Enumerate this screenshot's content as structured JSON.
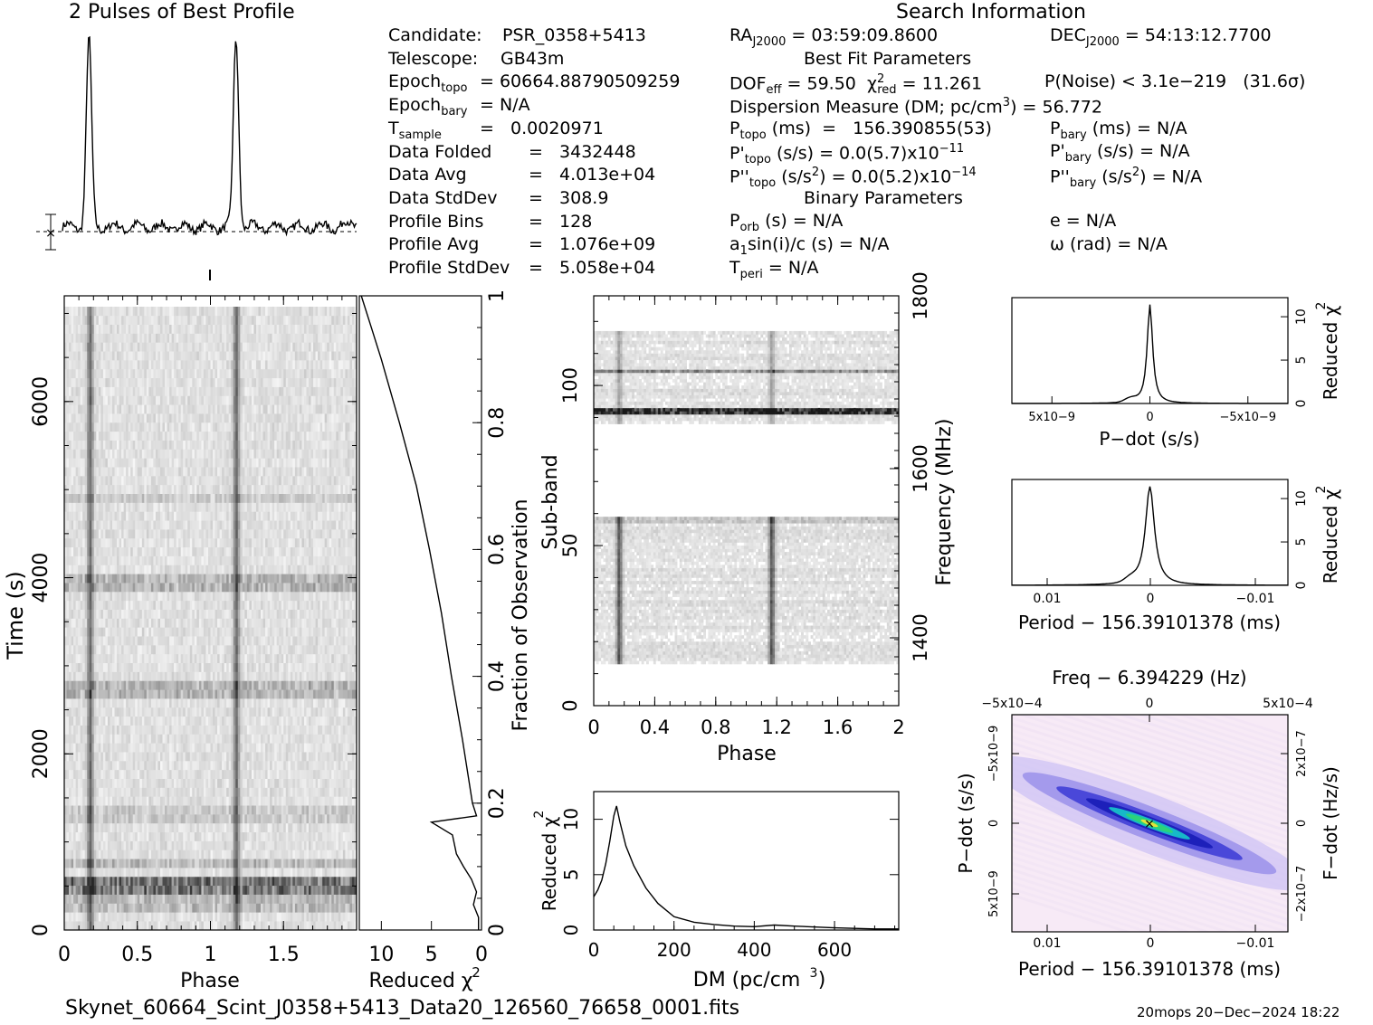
{
  "header": {
    "profile_title": "2 Pulses of Best Profile",
    "search_title": "Search Information",
    "best_fit_title": "Best Fit Parameters",
    "binary_title": "Binary Parameters"
  },
  "info_left": [
    {
      "label": "Candidate:",
      "value": "PSR_0358+5413"
    },
    {
      "label": "Telescope:",
      "value": "GB43m"
    },
    {
      "label": "Epoch",
      "sub": "topo",
      "value": "= 60664.88790509259"
    },
    {
      "label": "Epoch",
      "sub": "bary",
      "value": "= N/A"
    },
    {
      "label": "T",
      "sub": "sample",
      "value": "=   0.0020971"
    },
    {
      "label": "Data Folded",
      "value": "=   3432448"
    },
    {
      "label": "Data Avg",
      "value": "=   4.013e+04"
    },
    {
      "label": "Data StdDev",
      "value": "=   308.9"
    },
    {
      "label": "Profile Bins",
      "value": "=   128"
    },
    {
      "label": "Profile Avg",
      "value": "=   1.076e+09"
    },
    {
      "label": "Profile StdDev",
      "value": "=   5.058e+04"
    }
  ],
  "info_mid": {
    "ra_label": "RA",
    "ra_sub": "J2000",
    "ra_value": "= 03:59:09.8600",
    "dec_label": "DEC",
    "dec_sub": "J2000",
    "dec_value": "= 54:13:12.7700",
    "dof": "DOF",
    "dof_sub": "eff",
    "dof_value": "= 59.50",
    "chi_label": "χ",
    "chi_sup": "2",
    "chi_sub": "red",
    "chi_value": "= 11.261",
    "pnoise": "P(Noise) < 3.1e−219   (31.6σ)",
    "dm": "Dispersion Measure (DM; pc/cm",
    "dm_sup": "3",
    "dm_value": ") = 56.772",
    "ptopo": "P",
    "ptopo_sub": "topo",
    "ptopo_value": "(ms)  =   156.390855(53)",
    "pbary": "P",
    "pbary_sub": "bary",
    "pbary_value": "(ms) = N/A",
    "pdtopo": "P'",
    "pdtopo_sub": "topo",
    "pdtopo_value": "(s/s) = 0.0(5.7)x10",
    "pdtopo_exp": "−11",
    "pdbary": "P'",
    "pdbary_sub": "bary",
    "pdbary_value": "(s/s) = N/A",
    "pddtopo": "P''",
    "pddtopo_sub": "topo",
    "pddtopo_value": "(s/s",
    "pddtopo_sup": "2",
    "pddtopo_value2": ") = 0.0(5.2)x10",
    "pddtopo_exp": "−14",
    "pddbary": "P''",
    "pddbary_sub": "bary",
    "pddbary_value": "(s/s",
    "pddbary_sup": "2",
    "pddbary_value2": ") = N/A",
    "porb": "P",
    "porb_sub": "orb",
    "porb_value": "(s) = N/A",
    "e_value": "e = N/A",
    "asini": "a",
    "asini_sub": "1",
    "asini_value": "sin(i)/c (s) = N/A",
    "omega_value": "ω (rad) = N/A",
    "tperi": "T",
    "tperi_sub": "peri",
    "tperi_value": "= N/A"
  },
  "footer": {
    "filename": "Skynet_60664_Scint_J0358+5413_Data20_126560_76658_0001.fits",
    "stamp": "20mops 20−Dec−2024 18:22"
  },
  "chart_data": [
    {
      "type": "line",
      "name": "profile",
      "title": "2 Pulses of Best Profile",
      "x": [
        0,
        0.05,
        0.1,
        0.14,
        0.16,
        0.18,
        0.2,
        0.22,
        0.25,
        0.3,
        0.4,
        0.5,
        0.6,
        0.7,
        0.8,
        0.9,
        0.95,
        1.0,
        1.05,
        1.1,
        1.14,
        1.16,
        1.18,
        1.2,
        1.22,
        1.25,
        1.3,
        1.4,
        1.5,
        1.6,
        1.7,
        1.8,
        1.9,
        2.0
      ],
      "y": [
        0.05,
        0.06,
        0.05,
        0.2,
        0.8,
        1.0,
        0.75,
        0.2,
        0.06,
        0.05,
        0.06,
        0.04,
        0.05,
        0.06,
        0.04,
        0.05,
        0.07,
        0.05,
        0.06,
        0.05,
        0.2,
        0.8,
        1.0,
        0.75,
        0.2,
        0.06,
        0.05,
        0.06,
        0.04,
        0.05,
        0.06,
        0.04,
        0.05,
        0.05
      ]
    },
    {
      "type": "heatmap",
      "name": "time-phase",
      "xlabel": "Phase",
      "ylabel": "Time (s)",
      "xticks": [
        "0",
        "0.5",
        "1",
        "1.5"
      ],
      "yticks": [
        "0",
        "2000",
        "4000",
        "6000"
      ],
      "xlim": [
        0,
        2
      ],
      "ylim": [
        0,
        7200
      ]
    },
    {
      "type": "line",
      "name": "chi-vs-time",
      "xlabel": "Reduced χ2",
      "ylabel": "Fraction of Observation",
      "xticks": [
        "10",
        "5",
        "0"
      ],
      "yticks": [
        "0",
        "0.2",
        "0.4",
        "0.6",
        "0.8",
        "1"
      ],
      "fraction": [
        0,
        0.02,
        0.04,
        0.06,
        0.08,
        0.1,
        0.12,
        0.15,
        0.17,
        0.18,
        0.2,
        0.3,
        0.4,
        0.5,
        0.6,
        0.7,
        0.8,
        0.9,
        0.95,
        1.0
      ],
      "chi": [
        0.3,
        0.3,
        0.8,
        0.5,
        1.0,
        1.8,
        2.5,
        2.9,
        5.0,
        0.5,
        0.9,
        1.9,
        3.0,
        4.0,
        5.2,
        6.5,
        8.2,
        10.0,
        11.0,
        12.0
      ]
    },
    {
      "type": "heatmap",
      "name": "subband-phase",
      "xlabel": "Phase",
      "ylabel": "Sub-band",
      "y2label": "Frequency (MHz)",
      "xticks": [
        "0",
        "0.4",
        "0.8",
        "1.2",
        "1.6",
        "2"
      ],
      "yticks": [
        "0",
        "50",
        "100"
      ],
      "y2ticks": [
        "1400",
        "1600",
        "1800"
      ]
    },
    {
      "type": "line",
      "name": "dm-curve",
      "xlabel": "DM (pc/cm3)",
      "ylabel": "Reduced χ2",
      "xticks": [
        "0",
        "200",
        "400",
        "600"
      ],
      "yticks": [
        "0",
        "5",
        "10"
      ],
      "x": [
        0,
        10,
        20,
        30,
        40,
        50,
        56.8,
        65,
        80,
        100,
        130,
        160,
        200,
        250,
        300,
        350,
        400,
        450,
        500,
        600,
        700,
        760
      ],
      "y": [
        3.0,
        3.6,
        4.5,
        6.0,
        8.0,
        10.3,
        11.2,
        9.8,
        7.6,
        5.8,
        3.8,
        2.4,
        1.2,
        0.7,
        0.5,
        0.35,
        0.3,
        0.45,
        0.35,
        0.2,
        0.1,
        0.1
      ]
    },
    {
      "type": "line",
      "name": "pdot-curve",
      "xlabel": "P−dot (s/s)",
      "ylabel": "Reduced χ2",
      "xticks": [
        "5x10−9",
        "0",
        "−5x10−9"
      ],
      "yticks": [
        "0",
        "5",
        "10"
      ]
    },
    {
      "type": "line",
      "name": "period-curve",
      "xlabel": "Period − 156.39101378 (ms)",
      "ylabel": "Reduced χ2",
      "xticks": [
        "0.01",
        "0",
        "−0.01"
      ],
      "yticks": [
        "0",
        "5",
        "10"
      ]
    },
    {
      "type": "heatmap",
      "name": "pdot-period",
      "title": "Freq − 6.394229 (Hz)",
      "xlabel": "Period − 156.39101378 (ms)",
      "ylabel": "P−dot (s/s)",
      "y2label": "F−dot (Hz/s)",
      "xticks": [
        "0.01",
        "0",
        "−0.01"
      ],
      "x2ticks": [
        "−5x10−4",
        "0",
        "5x10−4"
      ],
      "yticks": [
        "−5x10−9",
        "0",
        "5x10−9"
      ],
      "y2ticks": [
        "2x10−7",
        "0",
        "−2x10−7"
      ]
    }
  ]
}
